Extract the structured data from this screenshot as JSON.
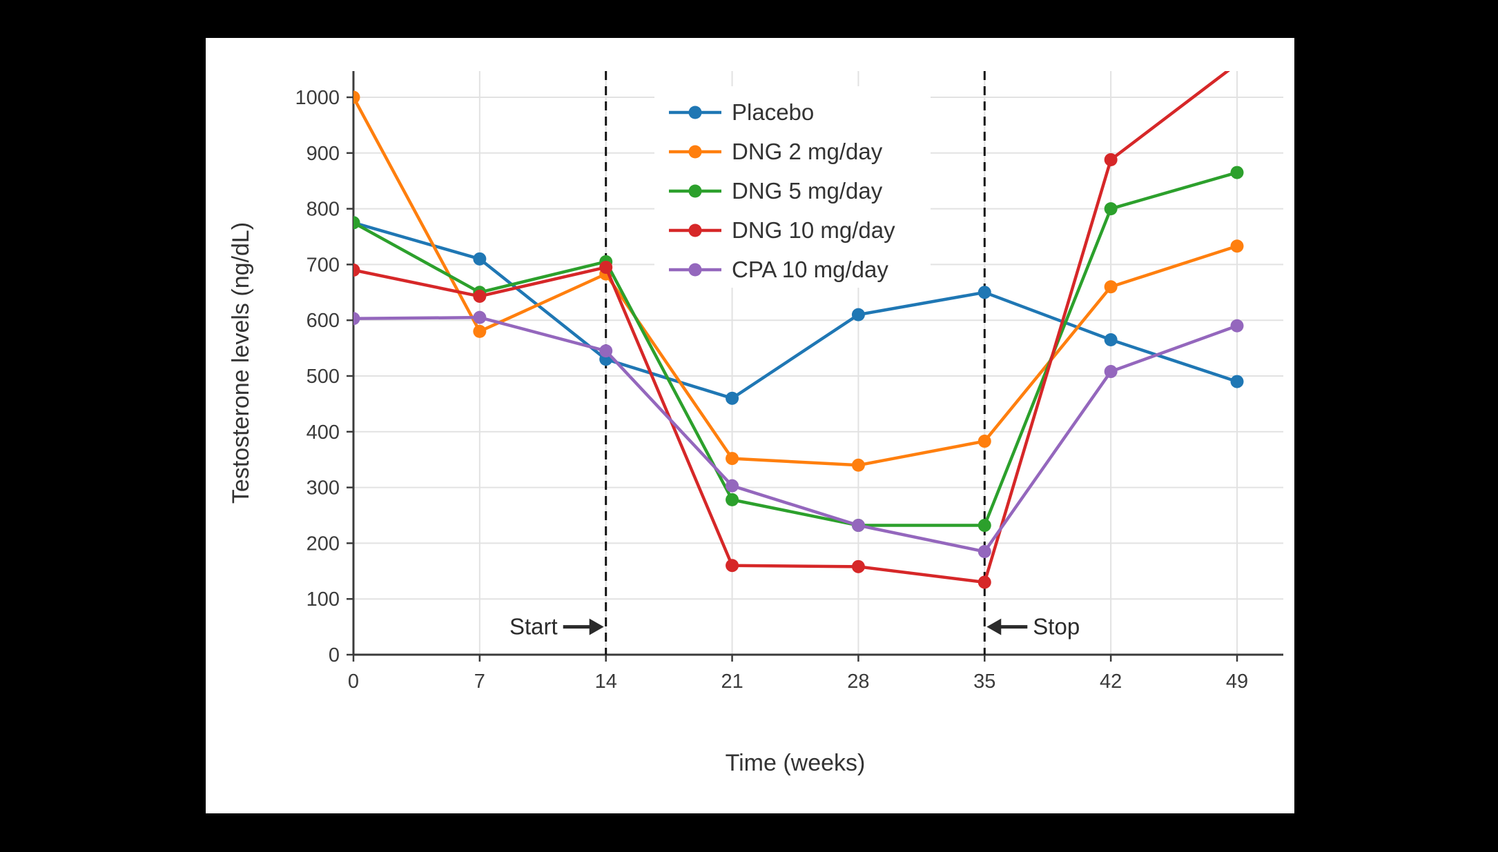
{
  "window": {
    "background": "#000000"
  },
  "card": {
    "background": "#ffffff"
  },
  "chart_data": {
    "type": "line",
    "title": "",
    "xlabel": "Time (weeks)",
    "ylabel": "Testosterone levels (ng/dL)",
    "x": [
      0,
      7,
      14,
      21,
      28,
      35,
      42,
      49
    ],
    "xticks": [
      0,
      7,
      14,
      21,
      28,
      35,
      42,
      49
    ],
    "yticks": [
      0,
      100,
      200,
      300,
      400,
      500,
      600,
      700,
      800,
      900,
      1000
    ],
    "xlim": [
      0,
      51.5
    ],
    "ylim": [
      0,
      1046
    ],
    "grid": true,
    "legend_position": "top-center-inside",
    "series": [
      {
        "name": "Placebo",
        "color": "#1f77b4",
        "values": [
          775,
          710,
          530,
          460,
          610,
          650,
          565,
          490
        ]
      },
      {
        "name": "DNG 2 mg/day",
        "color": "#ff7f0e",
        "values": [
          1000,
          580,
          683,
          352,
          340,
          383,
          660,
          733
        ]
      },
      {
        "name": "DNG 5 mg/day",
        "color": "#2ca02c",
        "values": [
          775,
          650,
          705,
          278,
          232,
          232,
          800,
          865
        ]
      },
      {
        "name": "DNG 10 mg/day",
        "color": "#d62728",
        "values": [
          690,
          643,
          695,
          160,
          158,
          130,
          888,
          1060
        ]
      },
      {
        "name": "CPA 10 mg/day",
        "color": "#9467bd",
        "values": [
          603,
          605,
          545,
          303,
          232,
          185,
          508,
          590
        ]
      }
    ],
    "vlines": [
      {
        "week": 14
      },
      {
        "week": 35
      }
    ],
    "annotations": [
      {
        "text": "Start",
        "week": 14,
        "y": 50,
        "side": "left",
        "arrow": "right"
      },
      {
        "text": "Stop",
        "week": 35,
        "y": 50,
        "side": "right",
        "arrow": "left"
      }
    ]
  }
}
